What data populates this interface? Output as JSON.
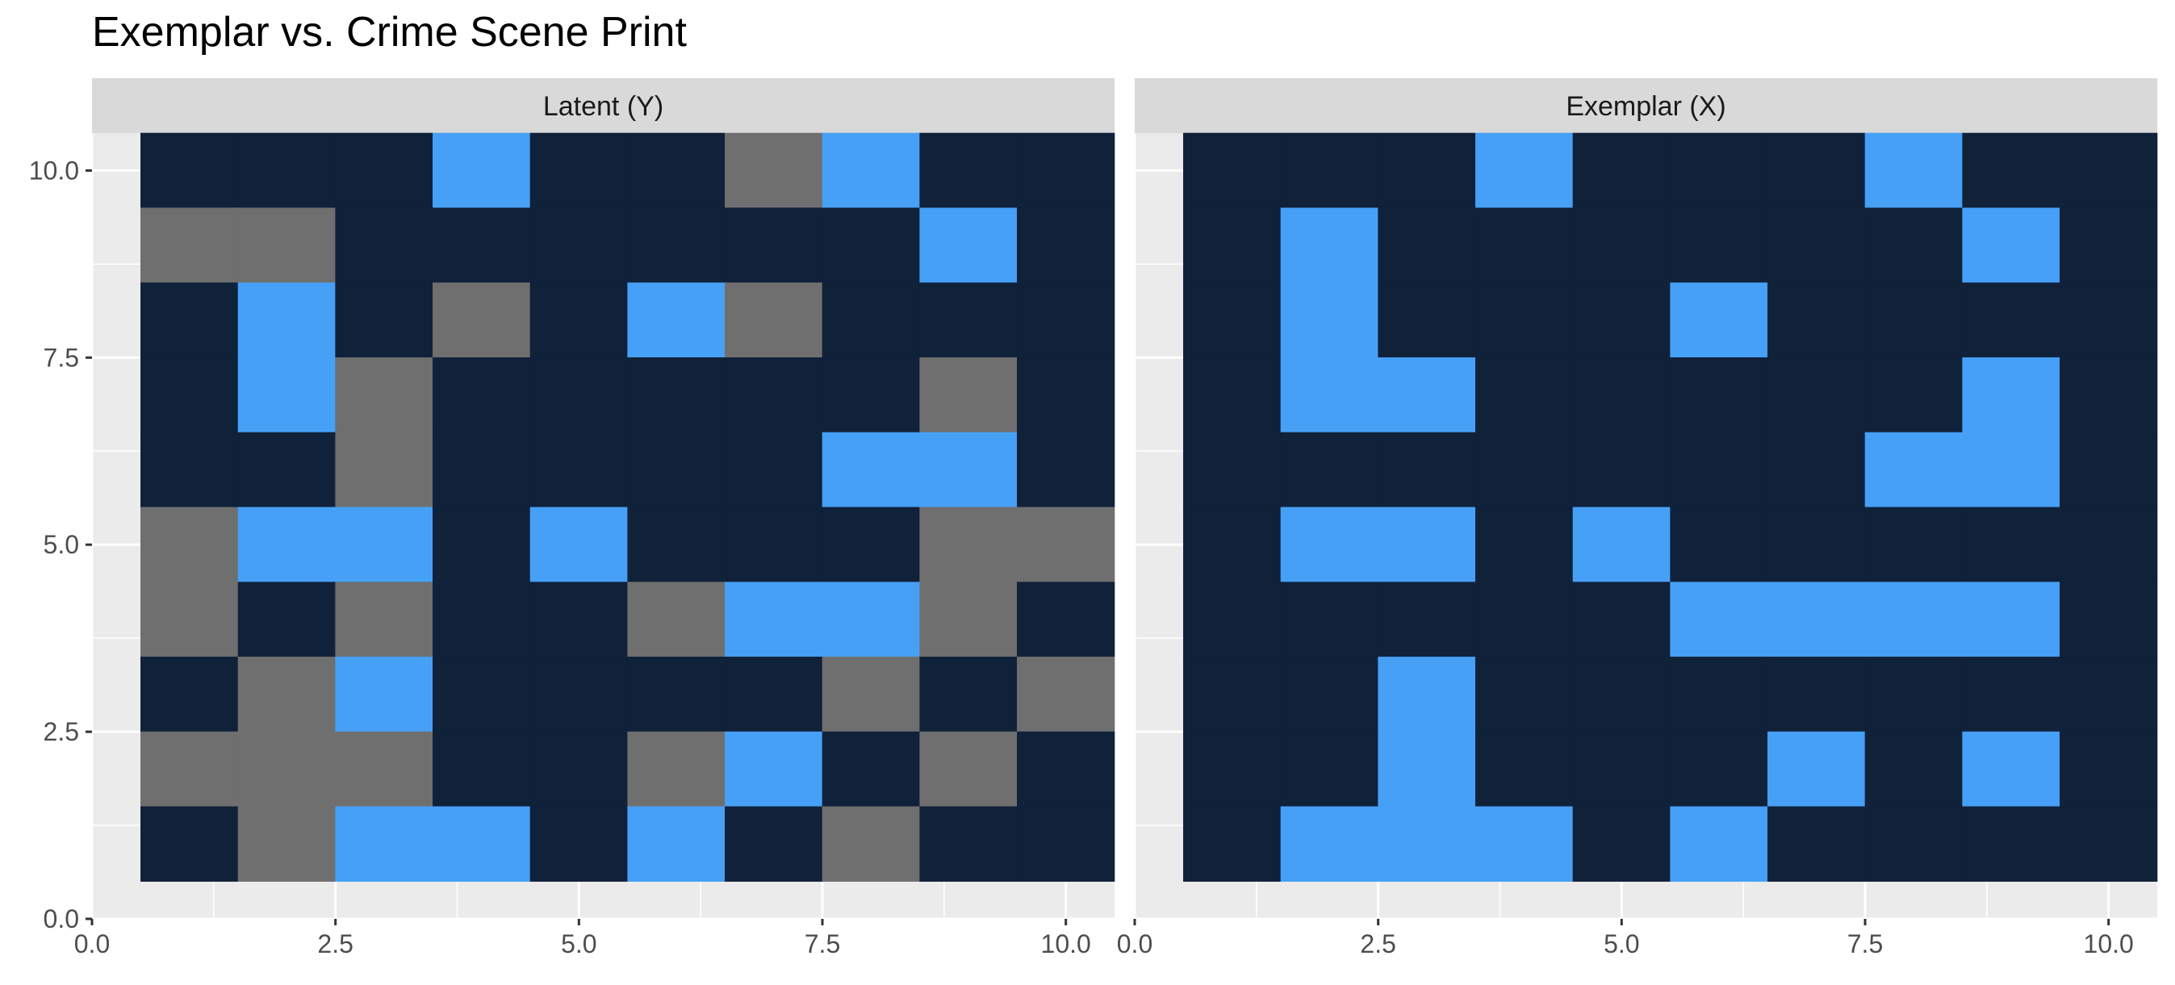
{
  "chart_data": {
    "type": "heatmap",
    "title": "Exemplar vs. Crime Scene Print",
    "xlabel": "",
    "ylabel": "",
    "xlim": [
      0,
      10.5
    ],
    "ylim": [
      0,
      10.5
    ],
    "x_ticks": [
      "0.0",
      "2.5",
      "5.0",
      "7.5",
      "10.0"
    ],
    "y_ticks": [
      "0.0",
      "2.5",
      "5.0",
      "7.5",
      "10.0"
    ],
    "grid": true,
    "legend": "none",
    "colors": {
      "0": "#10213a",
      "1": "#46a0f6",
      "2": "#6f6f6f"
    },
    "panels": [
      {
        "label": "Latent (Y)",
        "grid_top_to_bottom": [
          [
            0,
            0,
            0,
            1,
            0,
            0,
            2,
            1,
            0,
            0
          ],
          [
            2,
            2,
            0,
            0,
            0,
            0,
            0,
            0,
            1,
            0
          ],
          [
            0,
            1,
            0,
            2,
            0,
            1,
            2,
            0,
            0,
            0
          ],
          [
            0,
            1,
            2,
            0,
            0,
            0,
            0,
            0,
            2,
            0
          ],
          [
            0,
            0,
            2,
            0,
            0,
            0,
            0,
            1,
            1,
            0
          ],
          [
            2,
            1,
            1,
            0,
            1,
            0,
            0,
            0,
            2,
            2
          ],
          [
            2,
            0,
            2,
            0,
            0,
            2,
            1,
            1,
            2,
            0
          ],
          [
            0,
            2,
            1,
            0,
            0,
            0,
            0,
            2,
            0,
            2
          ],
          [
            2,
            2,
            2,
            0,
            0,
            2,
            1,
            0,
            2,
            0
          ],
          [
            0,
            2,
            1,
            1,
            0,
            1,
            0,
            2,
            0,
            0
          ]
        ]
      },
      {
        "label": "Exemplar (X)",
        "grid_top_to_bottom": [
          [
            0,
            0,
            0,
            1,
            0,
            0,
            0,
            1,
            0,
            0
          ],
          [
            0,
            1,
            0,
            0,
            0,
            0,
            0,
            0,
            1,
            0
          ],
          [
            0,
            1,
            0,
            0,
            0,
            1,
            0,
            0,
            0,
            0
          ],
          [
            0,
            1,
            1,
            0,
            0,
            0,
            0,
            0,
            1,
            0
          ],
          [
            0,
            0,
            0,
            0,
            0,
            0,
            0,
            1,
            1,
            0
          ],
          [
            0,
            1,
            1,
            0,
            1,
            0,
            0,
            0,
            0,
            0
          ],
          [
            0,
            0,
            0,
            0,
            0,
            1,
            1,
            1,
            1,
            0
          ],
          [
            0,
            0,
            1,
            0,
            0,
            0,
            0,
            0,
            0,
            0
          ],
          [
            0,
            0,
            1,
            0,
            0,
            0,
            1,
            0,
            1,
            0
          ],
          [
            0,
            1,
            1,
            1,
            0,
            1,
            0,
            0,
            0,
            0
          ]
        ]
      }
    ]
  }
}
